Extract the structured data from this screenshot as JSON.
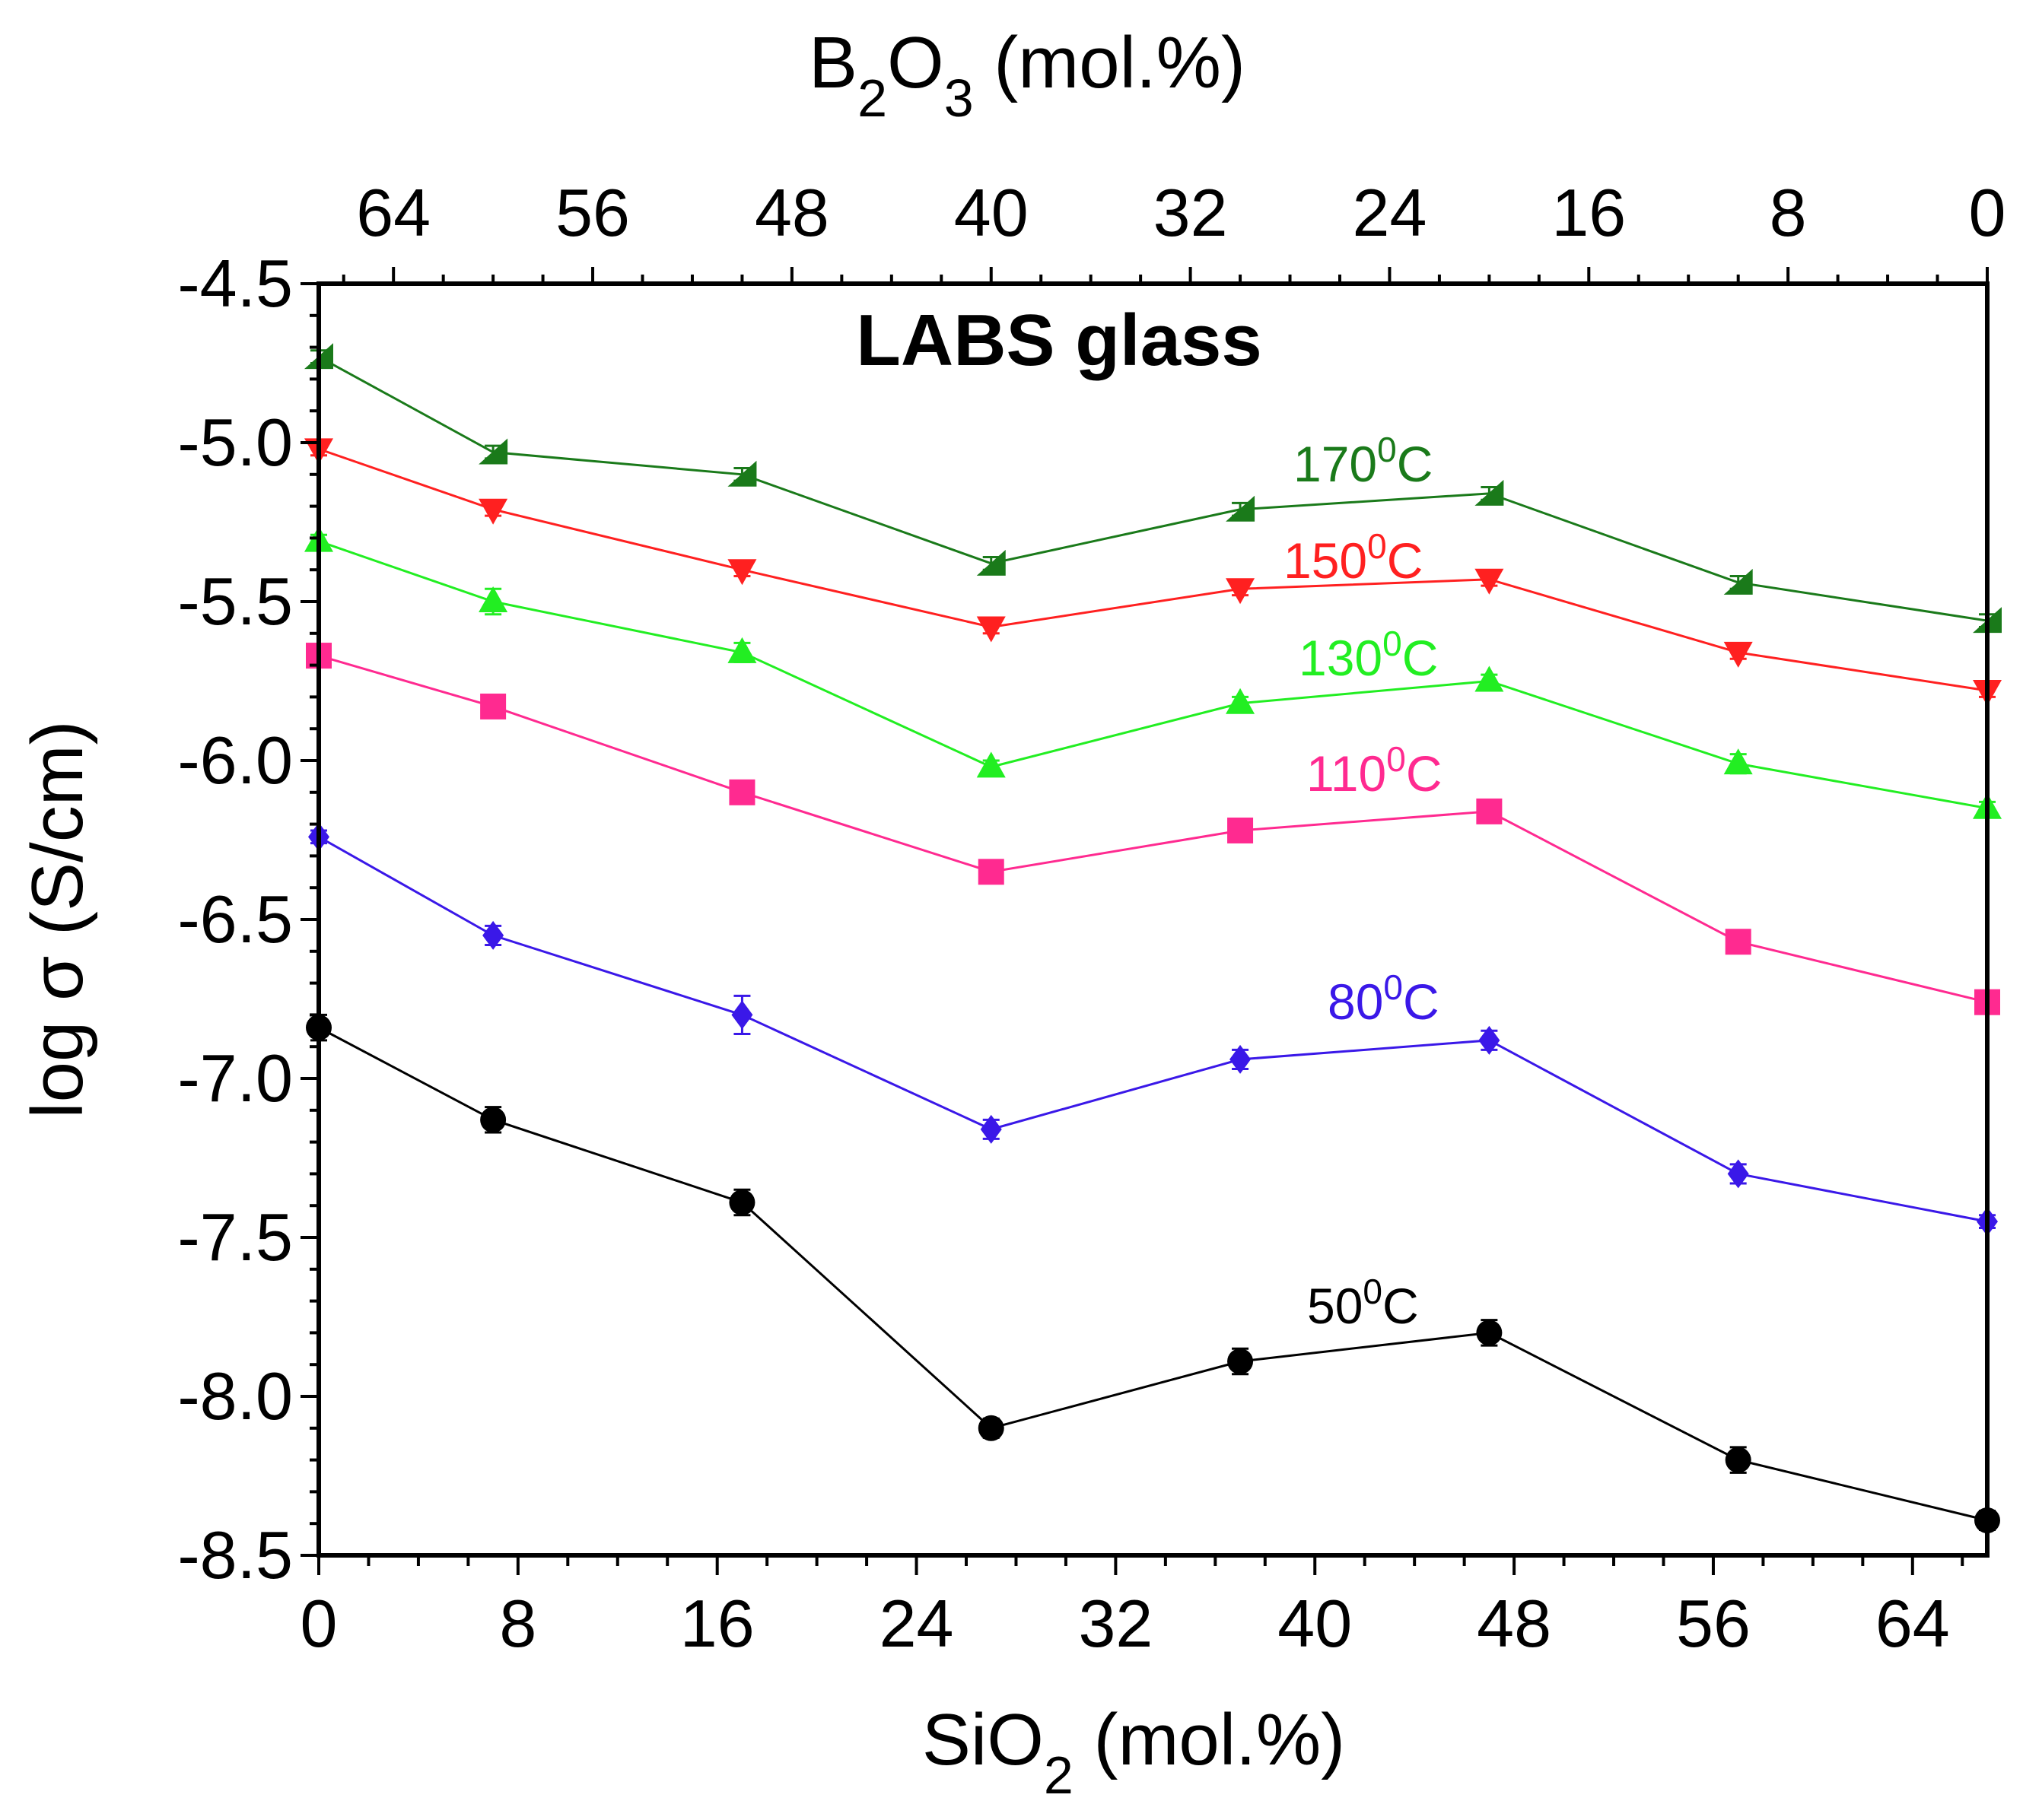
{
  "chart_data": {
    "type": "line",
    "title": "LABS glass",
    "xlabel": {
      "base": "SiO",
      "sub": "2",
      "suffix": " (mol.%)"
    },
    "x2label": {
      "b": "B",
      "b_sub": "2",
      "o": "O",
      "o_sub": "3",
      "suffix": " (mol.%)"
    },
    "ylabel": "log σ (S/cm)",
    "xlim": [
      0,
      67
    ],
    "ylim": [
      -8.5,
      -4.5
    ],
    "x_ticks": [
      0,
      8,
      16,
      24,
      32,
      40,
      48,
      56,
      64
    ],
    "x_tick_labels": [
      "0",
      "8",
      "16",
      "24",
      "32",
      "40",
      "48",
      "56",
      "64"
    ],
    "x2_ticks": [
      64,
      56,
      48,
      40,
      32,
      24,
      16,
      8,
      0
    ],
    "x2_tick_labels": [
      "64",
      "56",
      "48",
      "40",
      "32",
      "24",
      "16",
      "8",
      "0"
    ],
    "y_ticks": [
      -4.5,
      -5.0,
      -5.5,
      -6.0,
      -6.5,
      -7.0,
      -7.5,
      -8.0,
      -8.5
    ],
    "y_tick_labels": [
      "-4.5",
      "-5.0",
      "-5.5",
      "-6.0",
      "-6.5",
      "-7.0",
      "-7.5",
      "-8.0",
      "-8.5"
    ],
    "x": [
      0,
      7,
      17,
      27,
      37,
      47,
      57,
      67
    ],
    "series": [
      {
        "name": "170°C",
        "temp": "170",
        "sup": "0",
        "unit": "C",
        "marker": "triangle-left",
        "color": "#1a7a1a",
        "values": [
          -4.73,
          -5.03,
          -5.1,
          -5.38,
          -5.21,
          -5.16,
          -5.44,
          -5.56
        ],
        "errors": [
          0.02,
          0.02,
          0.02,
          0.02,
          0.02,
          0.02,
          0.02,
          0.02
        ]
      },
      {
        "name": "150°C",
        "temp": "150",
        "sup": "0",
        "unit": "C",
        "marker": "triangle-down",
        "color": "#ff2020",
        "values": [
          -5.02,
          -5.21,
          -5.4,
          -5.58,
          -5.46,
          -5.43,
          -5.66,
          -5.78
        ],
        "errors": [
          0.02,
          0.02,
          0.02,
          0.02,
          0.02,
          0.02,
          0.02,
          0.02
        ]
      },
      {
        "name": "130°C",
        "temp": "130",
        "sup": "0",
        "unit": "C",
        "marker": "triangle-up",
        "color": "#22ee22",
        "values": [
          -5.31,
          -5.5,
          -5.66,
          -6.02,
          -5.82,
          -5.75,
          -6.01,
          -6.15
        ],
        "errors": [
          0.02,
          0.04,
          0.03,
          0.02,
          0.02,
          0.02,
          0.03,
          0.02
        ]
      },
      {
        "name": "110°C",
        "temp": "110",
        "sup": "0",
        "unit": "C",
        "marker": "square",
        "color": "#ff2a90",
        "values": [
          -5.67,
          -5.83,
          -6.1,
          -6.35,
          -6.22,
          -6.16,
          -6.57,
          -6.76
        ],
        "errors": [
          0.02,
          0.02,
          0.03,
          0.02,
          0.02,
          0.02,
          0.03,
          0.02
        ]
      },
      {
        "name": "80°C",
        "temp": "80",
        "sup": "0",
        "unit": "C",
        "marker": "diamond",
        "color": "#3a18e8",
        "values": [
          -6.24,
          -6.55,
          -6.8,
          -7.16,
          -6.94,
          -6.88,
          -7.3,
          -7.45
        ],
        "errors": [
          0.02,
          0.03,
          0.06,
          0.03,
          0.03,
          0.03,
          0.03,
          0.02
        ]
      },
      {
        "name": "50°C",
        "temp": "50",
        "sup": "0",
        "unit": "C",
        "marker": "circle",
        "color": "#000000",
        "values": [
          -6.84,
          -7.13,
          -7.39,
          -8.1,
          -7.89,
          -7.8,
          -8.2,
          -8.39
        ],
        "errors": [
          0.04,
          0.04,
          0.04,
          0.03,
          0.04,
          0.04,
          0.04,
          0.03
        ]
      }
    ]
  }
}
